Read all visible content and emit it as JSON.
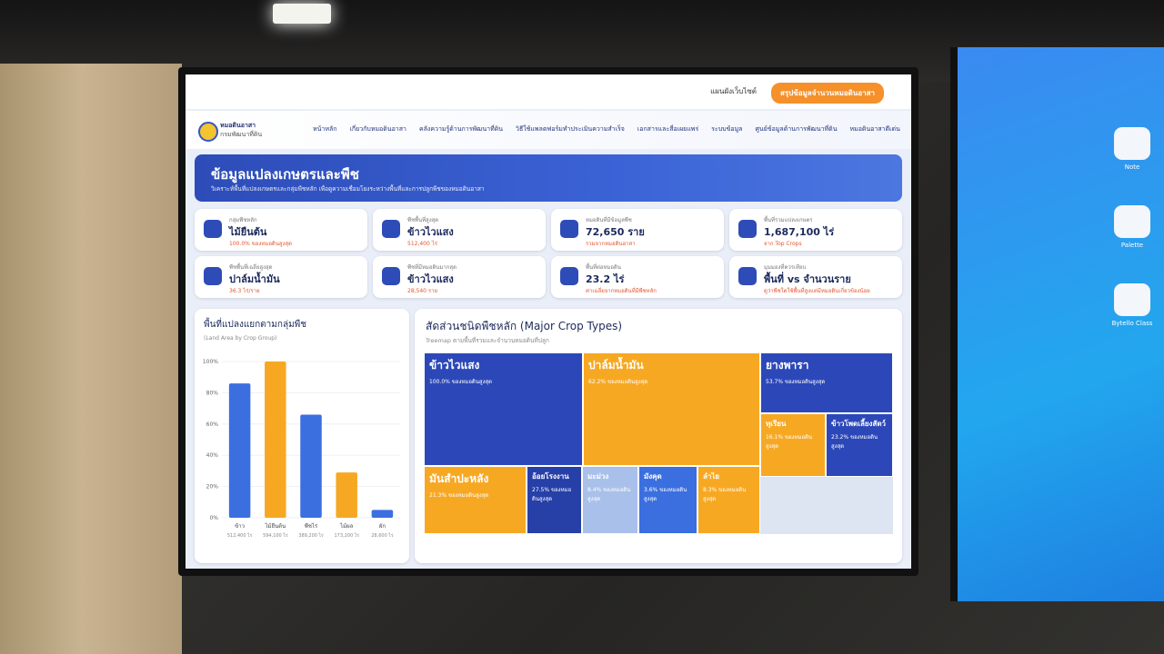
{
  "header": {
    "sitemap": "แผนผังเว็บไซต์",
    "button": "สรุปข้อมูลจำนวนหมอดินอาสา"
  },
  "brand": {
    "name": "หมอดินอาสา",
    "org": "กรมพัฒนาที่ดิน"
  },
  "nav": [
    "หน้าหลัก",
    "เกี่ยวกับหมอดินอาสา",
    "คลังความรู้ด้านการพัฒนาที่ดิน",
    "วิธีใช้แพลตฟอร์มทำประเมินความสำเร็จ",
    "เอกสารและสื่อเผยแพร่",
    "ระบบข้อมูล",
    "ศูนย์ข้อมูลด้านการพัฒนาที่ดิน",
    "หมอดินอาสาดีเด่น"
  ],
  "hero": {
    "title": "ข้อมูลแปลงเกษตรและพืช",
    "subtitle": "วิเคราะห์พื้นที่แปลงเกษตรและกลุ่มพืชหลัก เพื่อดูความเชื่อมโยงระหว่างพื้นที่และการปลูกพืชของหมอดินอาสา"
  },
  "cards": [
    {
      "label": "กลุ่มพืชหลัก",
      "value": "ไม้ยืนต้น",
      "note": "100.0% ของหมอดินสูงสุด"
    },
    {
      "label": "พืชพื้นที่สูงสุด",
      "value": "ข้าวไวแสง",
      "note": "512,400 ไร่"
    },
    {
      "label": "หมอดินที่มีข้อมูลพืช",
      "value": "72,650 ราย",
      "note": "รวมจากหมอดินอาสา"
    },
    {
      "label": "พื้นที่รวมแปลงเกษตร",
      "value": "1,687,100 ไร่",
      "note": "จาก Top Crops"
    },
    {
      "label": "พืชพื้นที่เฉลี่ยสูงสุด",
      "value": "ปาล์มน้ำมัน",
      "note": "36.3 ไร่/ราย"
    },
    {
      "label": "พืชที่มีหมอดินมากสุด",
      "value": "ข้าวไวแสง",
      "note": "28,540 ราย"
    },
    {
      "label": "พื้นที่ต่อหมอดิน",
      "value": "23.2 ไร่",
      "note": "ค่าเฉลี่ยจากหมอดินที่มีพืชหลัก"
    },
    {
      "label": "มุมมองที่ควรเทียบ",
      "value": "พื้นที่ vs จำนวนราย",
      "note": "ดูว่าพืชใดใช้พื้นที่สูงแต่มีหมอดินเกี่ยวข้องน้อย"
    }
  ],
  "chart_data": {
    "type": "bar",
    "title": "พื้นที่แปลงแยกตามกลุ่มพืช",
    "subtitle": "(Land Area by Crop Group)",
    "categories": [
      "ข้าว",
      "ไม้ยืนต้น",
      "พืชไร่",
      "ไม้ผล",
      "ผัก"
    ],
    "values": [
      86,
      100,
      66,
      29,
      5
    ],
    "areas": [
      "512,400 ไร่",
      "594,100 ไร่",
      "389,200 ไร่",
      "173,200 ไร่",
      "28,600 ไร่"
    ],
    "colors": [
      "#3b6fe0",
      "#f7a823",
      "#3b6fe0",
      "#f7a823",
      "#3b6fe0"
    ],
    "ylim": [
      0,
      100
    ],
    "yticks": [
      {
        "value": 0,
        "label": "0%"
      },
      {
        "value": 20,
        "label": "20%"
      },
      {
        "value": 40,
        "label": "40%"
      },
      {
        "value": 60,
        "label": "60%"
      },
      {
        "value": 80,
        "label": "80%"
      },
      {
        "value": 100,
        "label": "100%"
      }
    ],
    "grid": true
  },
  "treemap": {
    "title": "สัดส่วนชนิดพืชหลัก (Major Crop Types)",
    "subtitle": "Treemap ตามพื้นที่รวมและจำนวนหมอดินที่ปลูก",
    "tiles": [
      {
        "name": "ข้าวไวแสง",
        "note": "100.0% ของหมอดินสูงสุด",
        "color": "#2c48b8"
      },
      {
        "name": "ปาล์มน้ำมัน",
        "note": "62.2% ของหมอดินสูงสุด",
        "color": "#f7a823"
      },
      {
        "name": "ยางพารา",
        "note": "53.7% ของหมอดินสูงสุด",
        "color": "#2c48b8"
      },
      {
        "name": "ทุเรียน",
        "note": "16.1% ของหมอดินสูงสุด",
        "color": "#f7a823"
      },
      {
        "name": "ข้าวโพดเลี้ยงสัตว์",
        "note": "23.2% ของหมอดินสูงสุด",
        "color": "#2c48b8"
      },
      {
        "name": "มันสำปะหลัง",
        "note": "21.3% ของหมอดินสูงสุด",
        "color": "#f7a823"
      },
      {
        "name": "อ้อยโรงงาน",
        "note": "27.5% ของหมอดินสูงสุด",
        "color": "#2740a8"
      },
      {
        "name": "มะม่วง",
        "note": "8.4% ของหมอดินสูงสุด",
        "color": "#a9c0ea"
      },
      {
        "name": "มังคุด",
        "note": "3.6% ของหมอดินสูงสุด",
        "color": "#3b6fe0"
      },
      {
        "name": "ลำไย",
        "note": "8.3% ของหมอดินสูงสุด",
        "color": "#f7a823"
      }
    ]
  },
  "side_apps": [
    "Note",
    "Palette",
    "Bytello Class"
  ]
}
